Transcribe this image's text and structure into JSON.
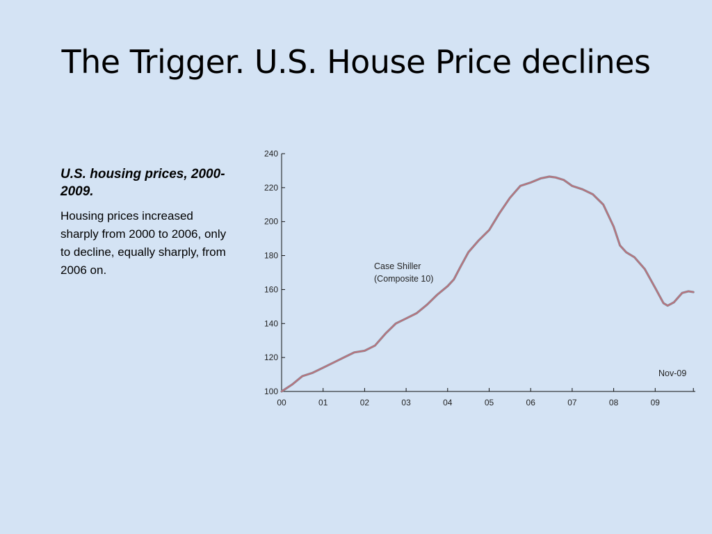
{
  "slide": {
    "title": "The Trigger. U.S. House Price declines"
  },
  "caption": {
    "heading": "U.S. housing prices, 2000-2009.",
    "body": "Housing prices increased sharply from 2000 to 2006, only to decline, equally sharply, from 2006 on."
  },
  "chart_data": {
    "type": "line",
    "ylim": [
      100,
      240
    ],
    "yticks": [
      100,
      120,
      140,
      160,
      180,
      200,
      220,
      240
    ],
    "xlim": [
      0,
      10
    ],
    "xticks": [
      {
        "value": 0,
        "label": "00"
      },
      {
        "value": 1,
        "label": "01"
      },
      {
        "value": 2,
        "label": "02"
      },
      {
        "value": 3,
        "label": "03"
      },
      {
        "value": 4,
        "label": "04"
      },
      {
        "value": 5,
        "label": "05"
      },
      {
        "value": 6,
        "label": "06"
      },
      {
        "value": 7,
        "label": "07"
      },
      {
        "value": 8,
        "label": "08"
      },
      {
        "value": 9,
        "label": "09"
      }
    ],
    "series": [
      {
        "label_lines": [
          "Case Shiller",
          "(Composite 10)"
        ],
        "color": "#c0707a",
        "points": [
          [
            0.0,
            100
          ],
          [
            0.25,
            104
          ],
          [
            0.5,
            109
          ],
          [
            0.75,
            111
          ],
          [
            1.0,
            114
          ],
          [
            1.25,
            117
          ],
          [
            1.5,
            120
          ],
          [
            1.75,
            123
          ],
          [
            2.0,
            124
          ],
          [
            2.25,
            127
          ],
          [
            2.5,
            134
          ],
          [
            2.75,
            140
          ],
          [
            3.0,
            143
          ],
          [
            3.25,
            146
          ],
          [
            3.5,
            151
          ],
          [
            3.75,
            157
          ],
          [
            4.0,
            162
          ],
          [
            4.15,
            166
          ],
          [
            4.3,
            173
          ],
          [
            4.5,
            182
          ],
          [
            4.75,
            189
          ],
          [
            5.0,
            195
          ],
          [
            5.25,
            205
          ],
          [
            5.5,
            214
          ],
          [
            5.75,
            221
          ],
          [
            6.0,
            223
          ],
          [
            6.25,
            225.5
          ],
          [
            6.45,
            226.5
          ],
          [
            6.6,
            226
          ],
          [
            6.8,
            224.5
          ],
          [
            7.0,
            221
          ],
          [
            7.25,
            219
          ],
          [
            7.5,
            216
          ],
          [
            7.75,
            210
          ],
          [
            8.0,
            197
          ],
          [
            8.15,
            186
          ],
          [
            8.3,
            182
          ],
          [
            8.5,
            179
          ],
          [
            8.75,
            172
          ],
          [
            9.0,
            161
          ],
          [
            9.2,
            152
          ],
          [
            9.3,
            150.5
          ],
          [
            9.45,
            152.5
          ],
          [
            9.65,
            158
          ],
          [
            9.8,
            159
          ],
          [
            9.92,
            158.5
          ]
        ]
      }
    ],
    "annotation": "Nov-09"
  }
}
